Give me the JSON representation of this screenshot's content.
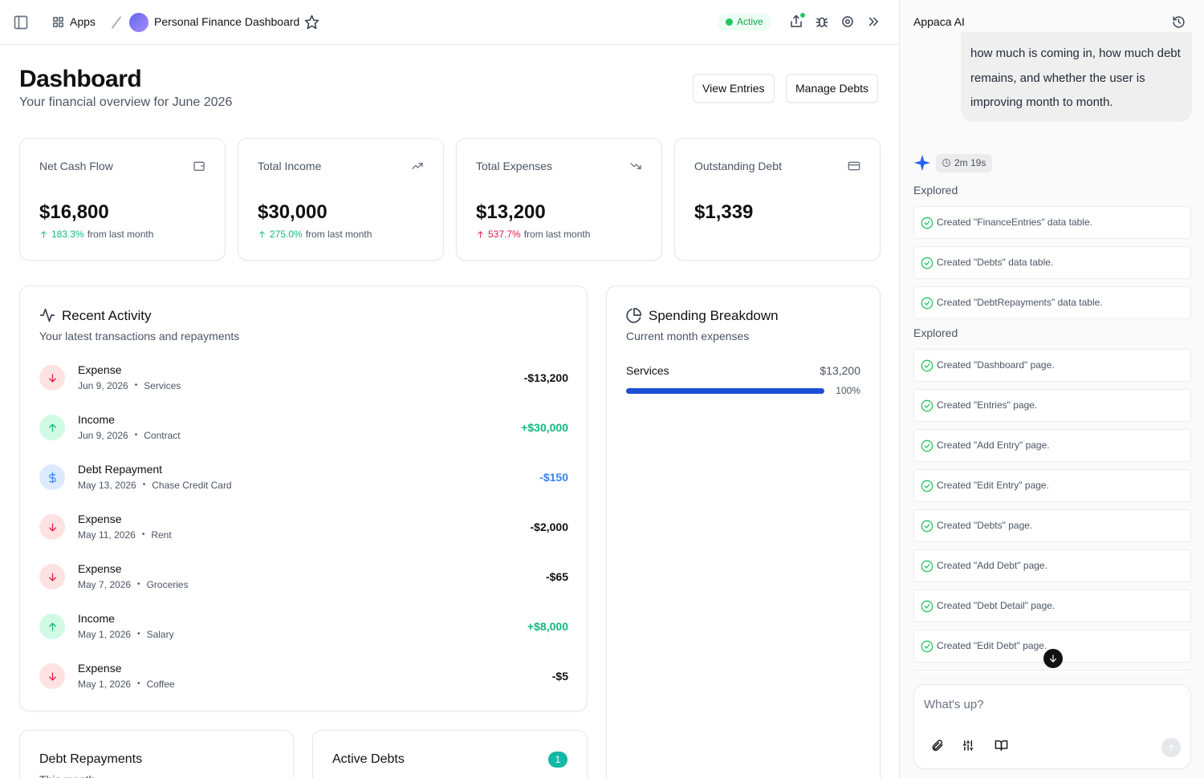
{
  "topbar": {
    "apps": "Apps",
    "project": "Personal Finance Dashboard",
    "status": "Active"
  },
  "header": {
    "title": "Dashboard",
    "subtitle": "Your financial overview for June 2026",
    "buttons": [
      "View Entries",
      "Manage Debts"
    ]
  },
  "stats": [
    {
      "label": "Net Cash Flow",
      "value": "$16,800",
      "change": "183.3%",
      "change_text": "from last month",
      "trend": "up-good"
    },
    {
      "label": "Total Income",
      "value": "$30,000",
      "change": "275.0%",
      "change_text": "from last month",
      "trend": "up-good"
    },
    {
      "label": "Total Expenses",
      "value": "$13,200",
      "change": "537.7%",
      "change_text": "from last month",
      "trend": "up-bad"
    },
    {
      "label": "Outstanding Debt",
      "value": "$1,339"
    }
  ],
  "activity": {
    "title": "Recent Activity",
    "subtitle": "Your latest transactions and repayments",
    "items": [
      {
        "type": "Expense",
        "date": "Jun 9, 2026",
        "category": "Services",
        "amount": "-$13,200"
      },
      {
        "type": "Income",
        "date": "Jun 9, 2026",
        "category": "Contract",
        "amount": "+$30,000"
      },
      {
        "type": "Debt Repayment",
        "date": "May 13, 2026",
        "category": "Chase Credit Card",
        "amount": "-$150"
      },
      {
        "type": "Expense",
        "date": "May 11, 2026",
        "category": "Rent",
        "amount": "-$2,000"
      },
      {
        "type": "Expense",
        "date": "May 7, 2026",
        "category": "Groceries",
        "amount": "-$65"
      },
      {
        "type": "Income",
        "date": "May 1, 2026",
        "category": "Salary",
        "amount": "+$8,000"
      },
      {
        "type": "Expense",
        "date": "May 1, 2026",
        "category": "Coffee",
        "amount": "-$5"
      }
    ]
  },
  "spending": {
    "title": "Spending Breakdown",
    "subtitle": "Current month expenses",
    "items": [
      {
        "name": "Services",
        "amount": "$13,200",
        "percent": "100%"
      }
    ]
  },
  "bottom": {
    "repayments": {
      "title": "Debt Repayments",
      "subtitle": "This month"
    },
    "debts": {
      "title": "Active Debts",
      "count": "1"
    }
  },
  "sidebar": {
    "title": "Appaca AI",
    "message": "how much is coming in, how much debt remains, and whether the user is improving month to month.",
    "timer": "2m 19s",
    "groups": [
      {
        "label": "Explored",
        "items": [
          "Created \"FinanceEntries\" data table.",
          "Created \"Debts\" data table.",
          "Created \"DebtRepayments\" data table."
        ]
      },
      {
        "label": "Explored",
        "items": [
          "Created \"Dashboard\" page.",
          "Created \"Entries\" page.",
          "Created \"Add Entry\" page.",
          "Created \"Edit Entry\" page.",
          "Created \"Debts\" page.",
          "Created \"Add Debt\" page.",
          "Created \"Debt Detail\" page.",
          "Created \"Edit Debt\" page."
        ]
      }
    ],
    "placeholder": "What's up?"
  }
}
